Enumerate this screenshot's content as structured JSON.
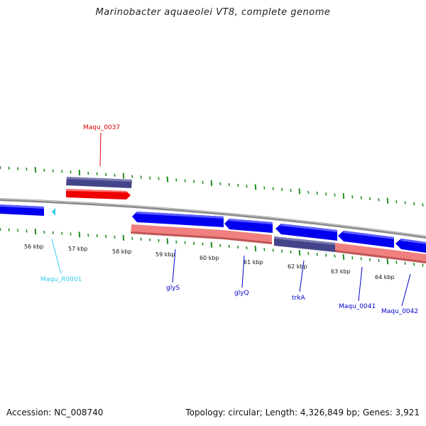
{
  "title": "Marinobacter aquaeolei VT8, complete genome",
  "colors": {
    "forward_gene": "#0000ee",
    "reverse_gene": "#f08080",
    "rna_gene": "#33ccee",
    "red_gene": "#ee0000",
    "navy_gene": "#44448a",
    "backbone": "#888888",
    "tick": "#228b22"
  },
  "kbp_labels": [
    "56 kbp",
    "57 kbp",
    "58 kbp",
    "59 kbp",
    "60 kbp",
    "61 kbp",
    "62 kbp",
    "63 kbp",
    "64 kbp"
  ],
  "gene_labels": {
    "maqu_0037": "Maqu_0037",
    "maqu_r0001": "Maqu_R0001",
    "glys": "glyS",
    "glyq": "glyQ",
    "trka": "trkA",
    "maqu_0041": "Maqu_0041",
    "maqu_0042": "Maqu_0042"
  },
  "footer": {
    "accession": "Accession: NC_008740",
    "summary": "Topology: circular; Length: 4,326,849 bp; Genes: 3,921"
  }
}
